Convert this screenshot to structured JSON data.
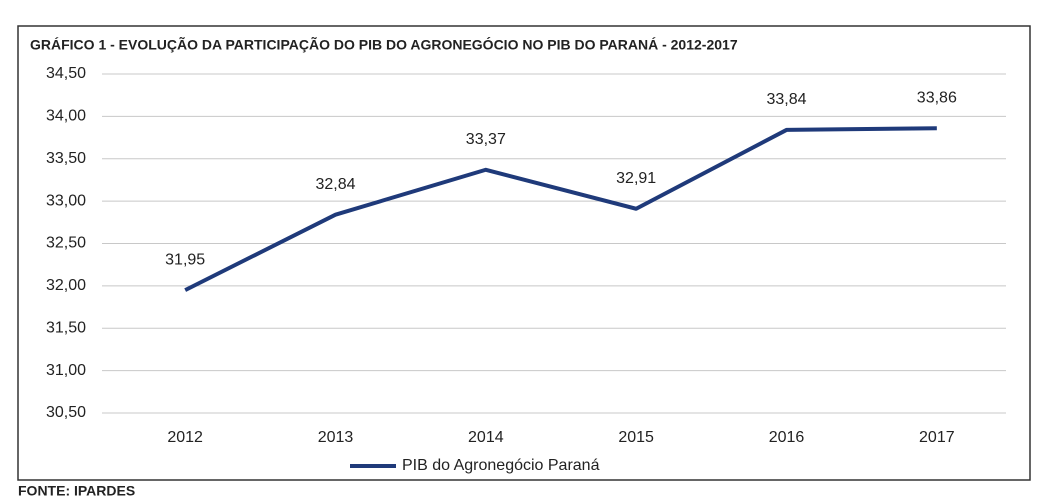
{
  "chart_data": {
    "type": "line",
    "title": "GRÁFICO 1 - EVOLUÇÃO DA PARTICIPAÇÃO DO PIB DO AGRONEGÓCIO NO PIB DO PARANÁ - 2012-2017",
    "categories": [
      "2012",
      "2013",
      "2014",
      "2015",
      "2016",
      "2017"
    ],
    "series": [
      {
        "name": "PIB do Agronegócio Paraná",
        "color": "#1f3a7a",
        "values": [
          31.95,
          32.84,
          33.37,
          32.91,
          33.84,
          33.86
        ],
        "value_labels": [
          "31,95",
          "32,84",
          "33,37",
          "32,91",
          "33,84",
          "33,86"
        ]
      }
    ],
    "ylim": [
      30.5,
      34.5
    ],
    "yticks": [
      {
        "value": 30.5,
        "label": "30,50"
      },
      {
        "value": 31,
        "label": "31,00"
      },
      {
        "value": 31.5,
        "label": "31,50"
      },
      {
        "value": 32,
        "label": "32,00"
      },
      {
        "value": 32.5,
        "label": "32,50"
      },
      {
        "value": 33,
        "label": "33,00"
      },
      {
        "value": 33.5,
        "label": "33,50"
      },
      {
        "value": 34,
        "label": "34,00"
      },
      {
        "value": 34.5,
        "label": "34,50"
      }
    ],
    "grid": true,
    "legend": "bottom",
    "source": "FONTE: IPARDES"
  }
}
